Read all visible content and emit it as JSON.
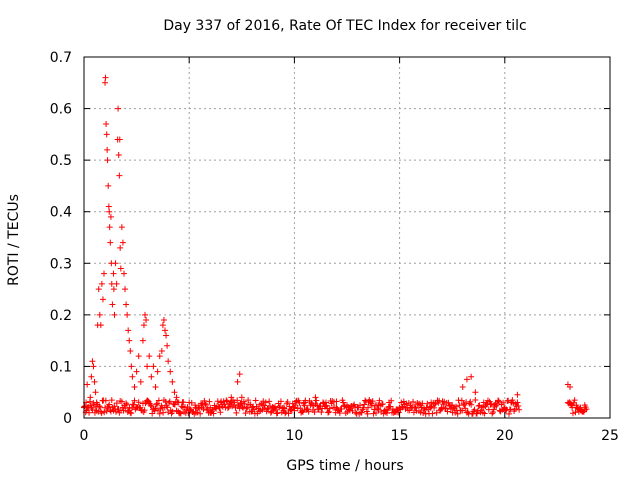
{
  "chart_data": {
    "type": "scatter",
    "title": "Day 337 of 2016, Rate Of TEC Index for receiver tilc",
    "xlabel": "GPS time / hours",
    "ylabel": "ROTI / TECUs",
    "xlim": [
      0,
      25
    ],
    "ylim": [
      0,
      0.7
    ],
    "xticks": [
      0,
      5,
      10,
      15,
      20,
      25
    ],
    "yticks": [
      0,
      0.1,
      0.2,
      0.3,
      0.4,
      0.5,
      0.6,
      0.7
    ],
    "xtick_labels": [
      "0",
      "5",
      "10",
      "15",
      "20",
      "25"
    ],
    "ytick_labels": [
      "0",
      "0.1",
      "0.2",
      "0.3",
      "0.4",
      "0.5",
      "0.6",
      "0.7"
    ],
    "grid": true,
    "marker": "+",
    "color": "#ff0000",
    "series": [
      {
        "name": "ROTI",
        "points": [
          [
            0.0,
            0.02
          ],
          [
            0.1,
            0.03
          ],
          [
            0.15,
            0.065
          ],
          [
            0.2,
            0.02
          ],
          [
            0.3,
            0.04
          ],
          [
            0.35,
            0.08
          ],
          [
            0.4,
            0.11
          ],
          [
            0.45,
            0.1
          ],
          [
            0.5,
            0.07
          ],
          [
            0.55,
            0.05
          ],
          [
            0.6,
            0.03
          ],
          [
            0.65,
            0.18
          ],
          [
            0.7,
            0.25
          ],
          [
            0.75,
            0.2
          ],
          [
            0.8,
            0.18
          ],
          [
            0.85,
            0.26
          ],
          [
            0.9,
            0.23
          ],
          [
            0.95,
            0.28
          ],
          [
            1.0,
            0.65
          ],
          [
            1.02,
            0.66
          ],
          [
            1.05,
            0.57
          ],
          [
            1.08,
            0.55
          ],
          [
            1.1,
            0.52
          ],
          [
            1.12,
            0.5
          ],
          [
            1.15,
            0.45
          ],
          [
            1.18,
            0.41
          ],
          [
            1.2,
            0.4
          ],
          [
            1.22,
            0.37
          ],
          [
            1.25,
            0.34
          ],
          [
            1.28,
            0.39
          ],
          [
            1.3,
            0.3
          ],
          [
            1.32,
            0.26
          ],
          [
            1.35,
            0.22
          ],
          [
            1.4,
            0.28
          ],
          [
            1.42,
            0.25
          ],
          [
            1.45,
            0.2
          ],
          [
            1.5,
            0.3
          ],
          [
            1.55,
            0.26
          ],
          [
            1.6,
            0.54
          ],
          [
            1.62,
            0.6
          ],
          [
            1.65,
            0.51
          ],
          [
            1.68,
            0.47
          ],
          [
            1.7,
            0.54
          ],
          [
            1.72,
            0.33
          ],
          [
            1.75,
            0.29
          ],
          [
            1.8,
            0.37
          ],
          [
            1.85,
            0.34
          ],
          [
            1.9,
            0.28
          ],
          [
            1.95,
            0.25
          ],
          [
            2.0,
            0.22
          ],
          [
            2.05,
            0.2
          ],
          [
            2.1,
            0.17
          ],
          [
            2.15,
            0.15
          ],
          [
            2.2,
            0.13
          ],
          [
            2.25,
            0.1
          ],
          [
            2.3,
            0.08
          ],
          [
            2.4,
            0.06
          ],
          [
            2.5,
            0.09
          ],
          [
            2.6,
            0.12
          ],
          [
            2.7,
            0.07
          ],
          [
            2.8,
            0.15
          ],
          [
            2.85,
            0.18
          ],
          [
            2.9,
            0.2
          ],
          [
            2.95,
            0.19
          ],
          [
            3.0,
            0.1
          ],
          [
            3.1,
            0.12
          ],
          [
            3.2,
            0.08
          ],
          [
            3.3,
            0.1
          ],
          [
            3.4,
            0.06
          ],
          [
            3.5,
            0.09
          ],
          [
            3.6,
            0.12
          ],
          [
            3.7,
            0.13
          ],
          [
            3.75,
            0.18
          ],
          [
            3.8,
            0.19
          ],
          [
            3.85,
            0.17
          ],
          [
            3.9,
            0.16
          ],
          [
            3.95,
            0.14
          ],
          [
            4.0,
            0.11
          ],
          [
            4.1,
            0.09
          ],
          [
            4.2,
            0.07
          ],
          [
            4.3,
            0.05
          ],
          [
            4.4,
            0.04
          ],
          [
            4.5,
            0.03
          ],
          [
            4.7,
            0.02
          ],
          [
            5.0,
            0.03
          ],
          [
            5.3,
            0.02
          ],
          [
            5.6,
            0.025
          ],
          [
            6.0,
            0.02
          ],
          [
            6.5,
            0.03
          ],
          [
            7.0,
            0.04
          ],
          [
            7.3,
            0.07
          ],
          [
            7.4,
            0.085
          ],
          [
            7.5,
            0.04
          ],
          [
            8.0,
            0.02
          ],
          [
            8.5,
            0.025
          ],
          [
            9.0,
            0.02
          ],
          [
            9.5,
            0.02
          ],
          [
            10.0,
            0.02
          ],
          [
            10.5,
            0.03
          ],
          [
            11.0,
            0.04
          ],
          [
            11.5,
            0.03
          ],
          [
            12.0,
            0.02
          ],
          [
            12.5,
            0.025
          ],
          [
            13.0,
            0.02
          ],
          [
            13.5,
            0.02
          ],
          [
            14.0,
            0.025
          ],
          [
            14.5,
            0.03
          ],
          [
            15.0,
            0.02
          ],
          [
            15.5,
            0.02
          ],
          [
            16.0,
            0.025
          ],
          [
            16.5,
            0.03
          ],
          [
            17.0,
            0.02
          ],
          [
            17.5,
            0.025
          ],
          [
            18.0,
            0.06
          ],
          [
            18.2,
            0.075
          ],
          [
            18.4,
            0.08
          ],
          [
            18.6,
            0.05
          ],
          [
            19.0,
            0.03
          ],
          [
            19.5,
            0.025
          ],
          [
            20.0,
            0.02
          ],
          [
            20.3,
            0.03
          ],
          [
            20.6,
            0.045
          ],
          [
            23.0,
            0.065
          ],
          [
            23.1,
            0.06
          ],
          [
            23.2,
            0.02
          ],
          [
            23.4,
            0.025
          ],
          [
            23.6,
            0.02
          ],
          [
            23.8,
            0.025
          ]
        ]
      }
    ],
    "bands": [
      {
        "x_start": 0.0,
        "x_end": 20.7,
        "y_min": 0.008,
        "y_max": 0.035
      },
      {
        "x_start": 23.0,
        "x_end": 23.9,
        "y_min": 0.008,
        "y_max": 0.035
      }
    ]
  }
}
